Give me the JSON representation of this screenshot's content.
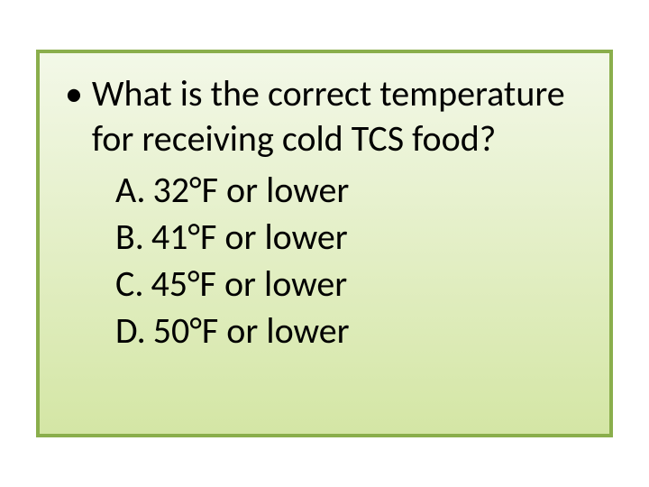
{
  "slide": {
    "border_color": "#8aae4c",
    "gradient_top": "#f3f8e8",
    "gradient_bottom": "#d4e6a5",
    "text_color": "#000000",
    "bullet_char": "•",
    "question": "What is the correct temperature for receiving cold TCS food?",
    "question_fontsize": 40,
    "answers": [
      {
        "letter": "A.",
        "text": "32°F or lower"
      },
      {
        "letter": "B.",
        "text": "41°F or lower"
      },
      {
        "letter": "C.",
        "text": "45°F or lower"
      },
      {
        "letter": "D.",
        "text": "50°F or lower"
      }
    ],
    "answer_fontsize": 40
  }
}
